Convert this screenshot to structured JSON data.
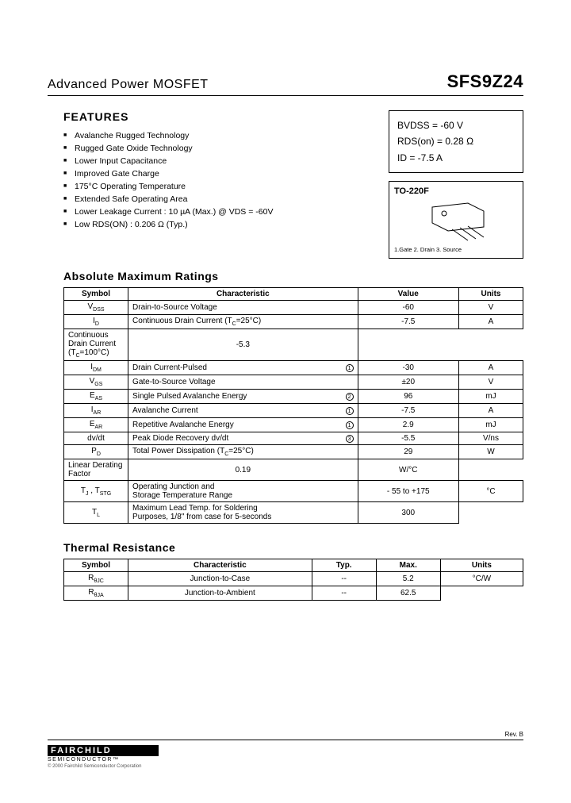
{
  "header": {
    "title_left": "Advanced Power MOSFET",
    "title_right": "SFS9Z24"
  },
  "features": {
    "heading": "FEATURES",
    "items": [
      "Avalanche Rugged Technology",
      "Rugged Gate Oxide Technology",
      "Lower Input Capacitance",
      "Improved Gate Charge",
      "175°C Operating Temperature",
      "Extended Safe Operating Area",
      "Lower Leakage Current : 10 µA (Max.) @ VDS = -60V",
      "Low RDS(ON) : 0.206 Ω (Typ.)"
    ]
  },
  "spec_box": {
    "bvdss_label": "BVDSS",
    "bvdss_value": "= -60 V",
    "rdson_label": "RDS(on)",
    "rdson_value": "= 0.28 Ω",
    "id_label": "ID",
    "id_value": "= -7.5 A"
  },
  "package": {
    "label": "TO-220F",
    "pins": "1.Gate 2. Drain 3. Source"
  },
  "abs_max": {
    "heading": "Absolute Maximum Ratings",
    "columns": [
      "Symbol",
      "Characteristic",
      "Value",
      "Units"
    ],
    "rows": [
      {
        "sym": "V<sub>DSS</sub>",
        "char": "Drain-to-Source Voltage",
        "val": "-60",
        "unit": "V",
        "note": ""
      },
      {
        "sym": "I<sub>D</sub>",
        "char": "Continuous Drain Current (T<sub>C</sub>=25°C)",
        "val": "-7.5",
        "unit": "A",
        "rowspan_sym": 2,
        "rowspan_unit": 2,
        "note": ""
      },
      {
        "sym": "",
        "char": "Continuous Drain Current (T<sub>C</sub>=100°C)",
        "val": "-5.3",
        "unit": "",
        "note": ""
      },
      {
        "sym": "I<sub>DM</sub>",
        "char": "Drain Current-Pulsed",
        "val": "-30",
        "unit": "A",
        "note": "1"
      },
      {
        "sym": "V<sub>GS</sub>",
        "char": "Gate-to-Source Voltage",
        "val": "±20",
        "unit": "V",
        "note": ""
      },
      {
        "sym": "E<sub>AS</sub>",
        "char": "Single Pulsed Avalanche Energy",
        "val": "96",
        "unit": "mJ",
        "note": "2"
      },
      {
        "sym": "I<sub>AR</sub>",
        "char": "Avalanche Current",
        "val": "-7.5",
        "unit": "A",
        "note": "1"
      },
      {
        "sym": "E<sub>AR</sub>",
        "char": "Repetitive Avalanche Energy",
        "val": "2.9",
        "unit": "mJ",
        "note": "1"
      },
      {
        "sym": "dv/dt",
        "char": "Peak Diode Recovery dv/dt",
        "val": "-5.5",
        "unit": "V/ns",
        "note": "3"
      },
      {
        "sym": "P<sub>D</sub>",
        "char": "Total Power Dissipation (T<sub>C</sub>=25°C)",
        "val": "29",
        "unit": "W",
        "rowspan_sym": 2,
        "note": ""
      },
      {
        "sym": "",
        "char": "Linear Derating Factor",
        "val": "0.19",
        "unit": "W/°C",
        "note": ""
      },
      {
        "sym": "T<sub>J</sub> , T<sub>STG</sub>",
        "char": "Operating Junction and<br>Storage Temperature Range",
        "val": "- 55 to +175",
        "unit": "°C",
        "rowspan_unit": 2,
        "note": ""
      },
      {
        "sym": "T<sub>L</sub>",
        "char": "Maximum Lead Temp. for Soldering<br>Purposes, 1/8\" from case for 5-seconds",
        "val": "300",
        "unit": "",
        "note": ""
      }
    ]
  },
  "thermal": {
    "heading": "Thermal Resistance",
    "columns": [
      "Symbol",
      "Characteristic",
      "Typ.",
      "Max.",
      "Units"
    ],
    "rows": [
      {
        "sym": "R<sub>θJC</sub>",
        "char": "Junction-to-Case",
        "typ": "--",
        "max": "5.2",
        "unit": "°C/W",
        "rowspan_unit": 2
      },
      {
        "sym": "R<sub>θJA</sub>",
        "char": "Junction-to-Ambient",
        "typ": "--",
        "max": "62.5",
        "unit": ""
      }
    ]
  },
  "footer": {
    "logo_main": "FAIRCHILD",
    "logo_sub": "SEMICONDUCTOR™",
    "copyright": "© 2000 Fairchild Semiconductor Corporation",
    "rev": "Rev. B"
  },
  "style": {
    "page_bg": "#ffffff",
    "text_color": "#000000",
    "border_color": "#000000",
    "title_fontsize": 16,
    "part_fontsize": 22,
    "heading_fontsize": 14,
    "body_fontsize": 10,
    "feature_fontsize": 10.5,
    "table_col_widths_abs": [
      "14%",
      "50%",
      "22%",
      "14%"
    ],
    "table_col_widths_thermal": [
      "14%",
      "40%",
      "14%",
      "14%",
      "18%"
    ]
  }
}
